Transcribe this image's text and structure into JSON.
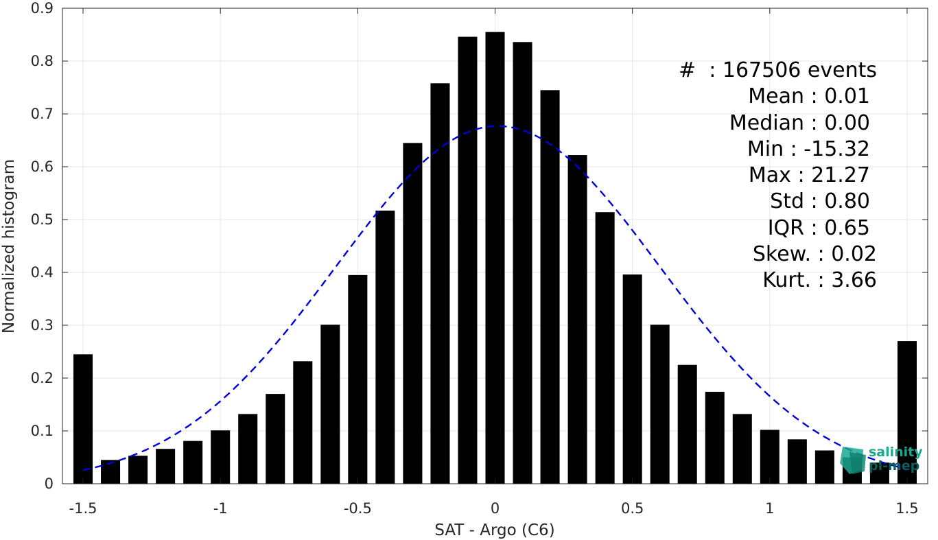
{
  "chart_data": {
    "type": "bar",
    "xlabel": "SAT - Argo (C6)",
    "ylabel": "Normalized histogram",
    "xlim": [
      -1.575,
      1.575
    ],
    "ylim": [
      0,
      0.9
    ],
    "xticks": [
      -1.5,
      -1,
      -0.5,
      0,
      0.5,
      1,
      1.5
    ],
    "xtick_labels": [
      "-1.5",
      "-1",
      "-0.5",
      "0",
      "0.5",
      "1",
      "1.5"
    ],
    "yticks": [
      0,
      0.1,
      0.2,
      0.3,
      0.4,
      0.5,
      0.6,
      0.7,
      0.8,
      0.9
    ],
    "ytick_labels": [
      "0",
      "0.1",
      "0.2",
      "0.3",
      "0.4",
      "0.5",
      "0.6",
      "0.7",
      "0.8",
      "0.9"
    ],
    "grid": true,
    "bar_color": "#000000",
    "bins": [
      -1.5,
      -1.4,
      -1.3,
      -1.2,
      -1.1,
      -1.0,
      -0.9,
      -0.8,
      -0.7,
      -0.6,
      -0.5,
      -0.4,
      -0.3,
      -0.2,
      -0.1,
      0.0,
      0.1,
      0.2,
      0.3,
      0.4,
      0.5,
      0.6,
      0.7,
      0.8,
      0.9,
      1.0,
      1.1,
      1.2,
      1.3,
      1.4,
      1.5
    ],
    "values": [
      0.245,
      0.045,
      0.053,
      0.066,
      0.081,
      0.101,
      0.132,
      0.17,
      0.232,
      0.301,
      0.395,
      0.517,
      0.645,
      0.758,
      0.846,
      0.855,
      0.836,
      0.745,
      0.622,
      0.514,
      0.396,
      0.301,
      0.225,
      0.174,
      0.132,
      0.102,
      0.084,
      0.063,
      0.05,
      0.04,
      0.27
    ],
    "fit_curve": {
      "style": "dashed",
      "color": "#0000dd",
      "mean": 0.01,
      "std": 0.59,
      "peak": 0.677,
      "x_range": [
        -1.5,
        1.5
      ]
    },
    "stats_box": {
      "position": "top-right",
      "lines": [
        "#  : 167506 events",
        "Mean : 0.01",
        "Median : 0.00",
        "Min : -15.32",
        "Max : 21.27",
        "Std : 0.80",
        "IQR : 0.65",
        "Skew. : 0.02",
        "Kurt. : 3.66"
      ]
    }
  },
  "logo": {
    "line1": "salinity",
    "line2": "pi-mep",
    "color1": "#1aa890",
    "color2": "#0b5e5a"
  }
}
